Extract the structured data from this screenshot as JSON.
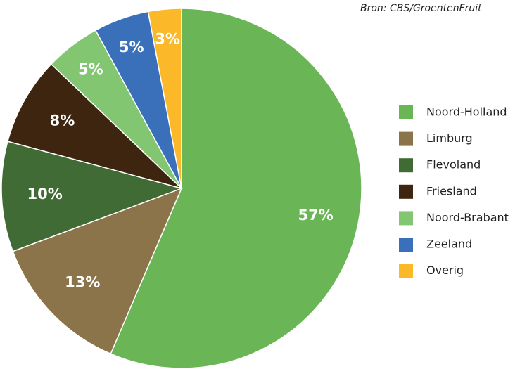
{
  "chart_data": {
    "type": "pie",
    "source": "Bron: CBS/GroentenFruit",
    "categories": [
      "Noord-Holland",
      "Limburg",
      "Flevoland",
      "Friesland",
      "Noord-Brabant",
      "Zeeland",
      "Overig"
    ],
    "values": [
      57,
      13,
      10,
      8,
      5,
      5,
      3
    ],
    "value_labels": [
      "57%",
      "13%",
      "10%",
      "8%",
      "5%",
      "5%",
      "3%"
    ],
    "colors": [
      "#6ab556",
      "#8b7449",
      "#416b35",
      "#3d2510",
      "#83c672",
      "#3a6fba",
      "#fbb929"
    ],
    "legend": "right"
  }
}
